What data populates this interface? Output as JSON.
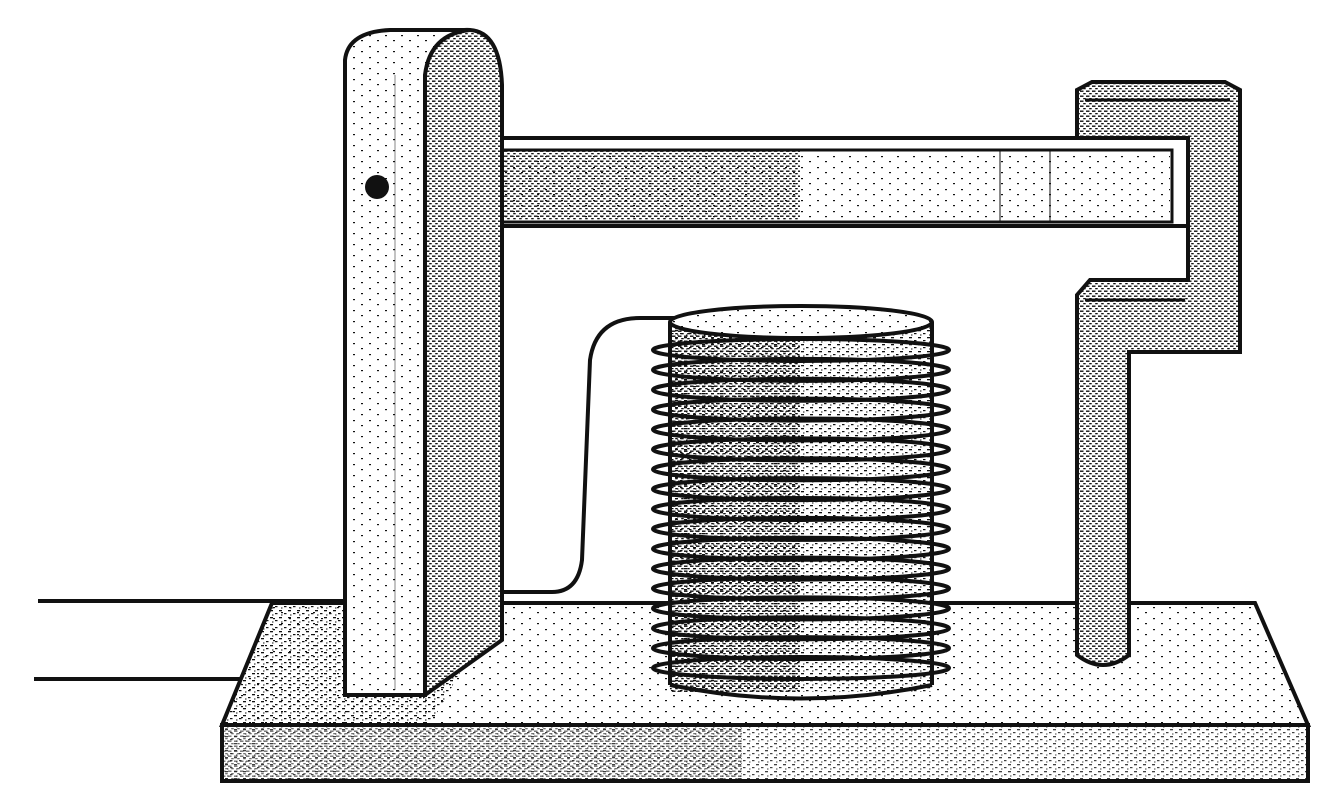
{
  "diagram": {
    "subject": "electromagnet-relay-apparatus",
    "components": [
      "base-board",
      "left-post",
      "pivot-pin",
      "armature-bar",
      "right-bracket",
      "coil-core",
      "coil-windings",
      "lead-wires"
    ],
    "coil_turns": 17,
    "colors": {
      "ink": "#111111",
      "paper": "#ffffff"
    },
    "hatch": "stipple-shading"
  }
}
